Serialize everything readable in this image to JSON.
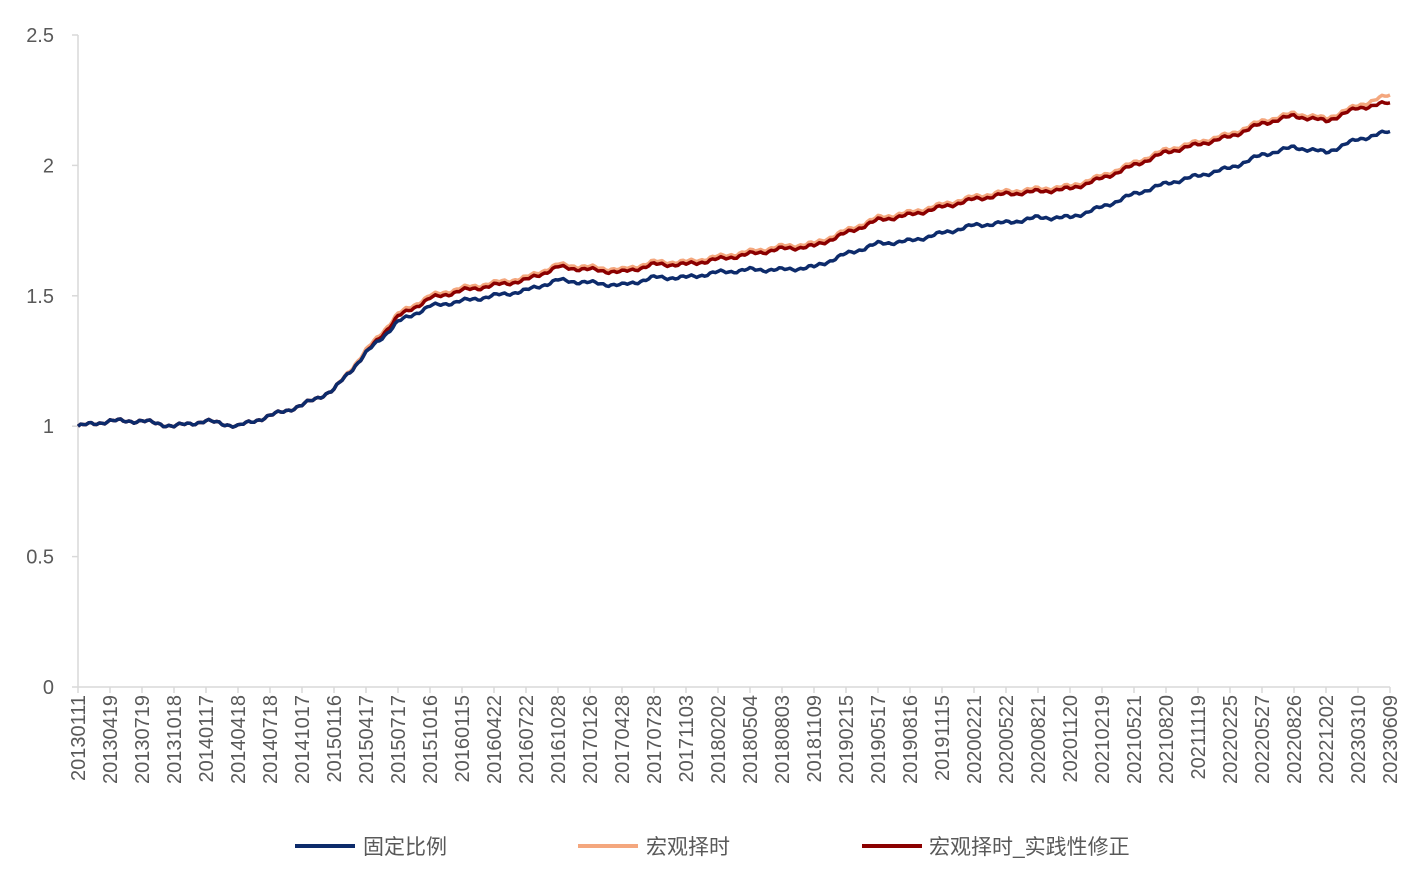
{
  "chart_data": {
    "type": "line",
    "title": "",
    "xlabel": "",
    "ylabel": "",
    "ylim": [
      0,
      2.5
    ],
    "yticks": [
      "0",
      "0.5",
      "1",
      "1.5",
      "2",
      "2.5"
    ],
    "grid": false,
    "legend_position": "bottom",
    "x_tick_labels": [
      "20130111",
      "20130419",
      "20130719",
      "20131018",
      "20140117",
      "20140418",
      "20140718",
      "20141017",
      "20150116",
      "20150417",
      "20150717",
      "20151016",
      "20160115",
      "20160422",
      "20160722",
      "20161028",
      "20170126",
      "20170428",
      "20170728",
      "20171103",
      "20180202",
      "20180504",
      "20180803",
      "20181109",
      "20190215",
      "20190517",
      "20190816",
      "20191115",
      "20200221",
      "20200522",
      "20200821",
      "20201120",
      "20210219",
      "20210521",
      "20210820",
      "20211119",
      "20220225",
      "20220527",
      "20220826",
      "20221202",
      "20230310",
      "20230609"
    ],
    "series": [
      {
        "name": "固定比例",
        "color": "#0d2b6b",
        "values": [
          1.0,
          1.02,
          1.02,
          1.0,
          1.02,
          1.0,
          1.04,
          1.08,
          1.14,
          1.28,
          1.4,
          1.46,
          1.48,
          1.5,
          1.52,
          1.56,
          1.55,
          1.54,
          1.57,
          1.57,
          1.59,
          1.6,
          1.6,
          1.61,
          1.66,
          1.7,
          1.71,
          1.74,
          1.77,
          1.78,
          1.8,
          1.8,
          1.84,
          1.89,
          1.93,
          1.96,
          1.99,
          2.04,
          2.07,
          2.05,
          2.1,
          2.13
        ]
      },
      {
        "name": "宏观择时",
        "color": "#f4a77e",
        "values": [
          1.0,
          1.02,
          1.02,
          1.0,
          1.02,
          1.0,
          1.04,
          1.08,
          1.14,
          1.29,
          1.43,
          1.5,
          1.53,
          1.55,
          1.57,
          1.62,
          1.61,
          1.6,
          1.63,
          1.63,
          1.65,
          1.67,
          1.69,
          1.7,
          1.75,
          1.8,
          1.82,
          1.85,
          1.88,
          1.9,
          1.91,
          1.92,
          1.96,
          2.01,
          2.06,
          2.09,
          2.12,
          2.17,
          2.2,
          2.18,
          2.23,
          2.27
        ]
      },
      {
        "name": "宏观择时_实践性修正",
        "color": "#8b0000",
        "values": [
          1.0,
          1.02,
          1.02,
          1.0,
          1.02,
          1.0,
          1.04,
          1.08,
          1.14,
          1.28,
          1.42,
          1.49,
          1.52,
          1.54,
          1.56,
          1.61,
          1.6,
          1.59,
          1.62,
          1.62,
          1.64,
          1.66,
          1.68,
          1.69,
          1.74,
          1.79,
          1.81,
          1.84,
          1.87,
          1.89,
          1.9,
          1.91,
          1.95,
          2.0,
          2.05,
          2.08,
          2.11,
          2.16,
          2.19,
          2.17,
          2.22,
          2.24
        ]
      }
    ]
  }
}
